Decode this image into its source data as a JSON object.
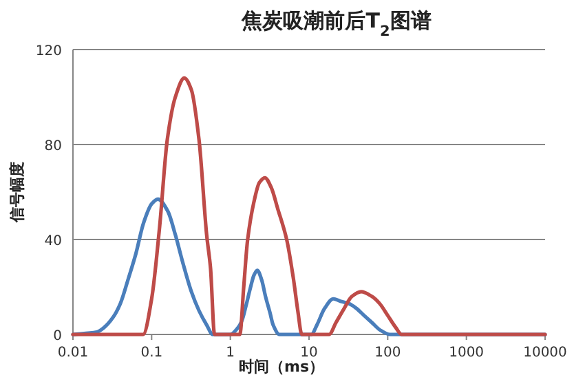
{
  "chart_data": {
    "type": "line",
    "title": "焦炭吸潮前后T$_{2}$图谱",
    "xlabel": "时间（ms）",
    "ylabel": "信号幅度",
    "log": "x",
    "xlim": [
      0.01,
      10000
    ],
    "xticks": [
      0.01,
      0.1,
      1,
      10,
      100,
      1000,
      10000
    ],
    "ylim": [
      0,
      120
    ],
    "yticks": [
      0,
      40,
      80,
      120
    ],
    "grid": "y",
    "marker": "none",
    "line_style": "solid",
    "series": [
      {
        "color": "#4a7ebb",
        "x": [
          0.01,
          0.02,
          0.025,
          0.032,
          0.04,
          0.05,
          0.063,
          0.079,
          0.1,
          0.12,
          0.16,
          0.2,
          0.25,
          0.32,
          0.4,
          0.5,
          0.6,
          1,
          1.26,
          1.41,
          1.58,
          1.78,
          2.0,
          2.2,
          2.5,
          2.8,
          3.2,
          3.5,
          4.2,
          10.7,
          12.6,
          15.8,
          20.4,
          25,
          32,
          40,
          50,
          63,
          79,
          107,
          10000
        ],
        "values": [
          0,
          1,
          3,
          7,
          13,
          23,
          34,
          47,
          55,
          57,
          52,
          42,
          30,
          18,
          10,
          4,
          0,
          0,
          3,
          6,
          12,
          19,
          25,
          27,
          23,
          16,
          9,
          4,
          0,
          0,
          4,
          11,
          15,
          14,
          13,
          11,
          8,
          5,
          2,
          0,
          0
        ]
      },
      {
        "color": "#be4b48",
        "x": [
          0.01,
          0.078,
          0.1,
          0.126,
          0.158,
          0.2,
          0.26,
          0.32,
          0.4,
          0.5,
          0.56,
          0.63,
          1.32,
          1.48,
          1.66,
          2.0,
          2.34,
          2.75,
          3.3,
          4.0,
          5.2,
          6.3,
          7.2,
          8.1,
          18,
          22,
          28,
          35,
          46,
          63,
          79,
          100,
          126,
          150,
          10000
        ],
        "values": [
          0,
          0,
          15,
          45,
          82,
          100,
          108,
          103,
          82,
          42,
          28,
          0,
          0,
          20,
          40,
          56,
          64,
          66,
          62,
          53,
          40,
          24,
          10,
          0,
          0,
          5,
          11,
          16,
          18,
          16,
          13,
          8,
          3,
          0,
          0
        ]
      }
    ]
  }
}
